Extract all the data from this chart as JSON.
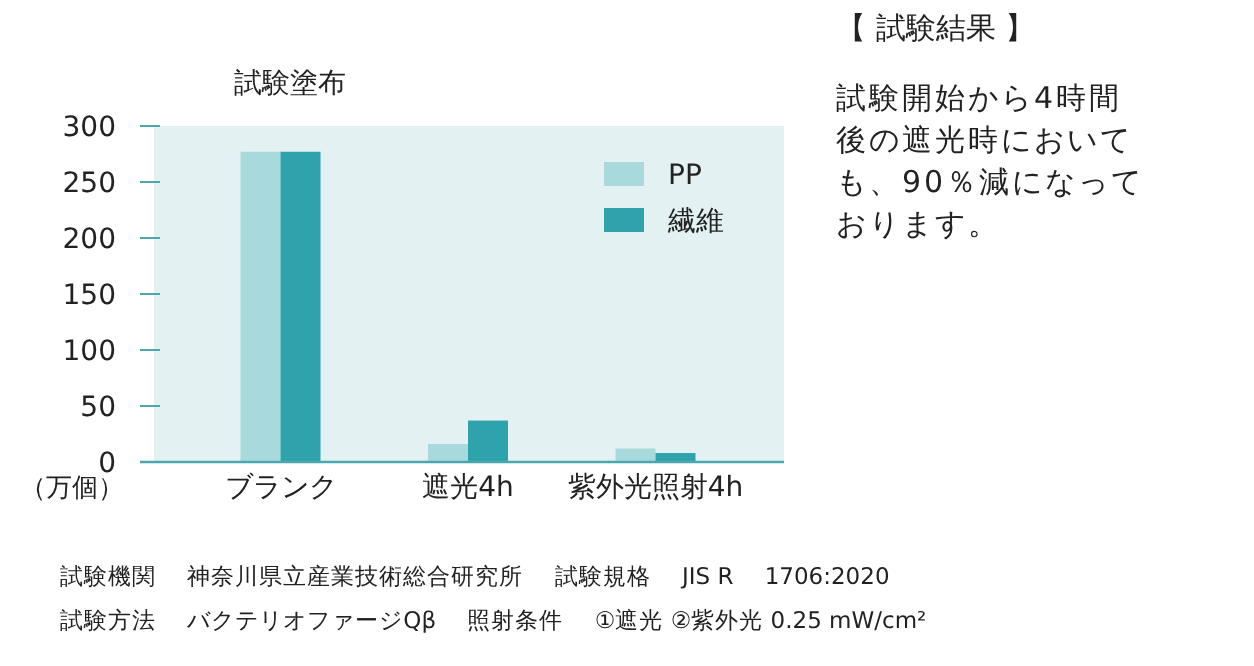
{
  "chart_data": {
    "type": "bar",
    "title": "試験塗布",
    "ylabel": "（万個）",
    "categories": [
      "ブランク",
      "遮光4h",
      "紫外光照射4h"
    ],
    "series": [
      {
        "name": "PP",
        "color": "#a8d9dc",
        "values": [
          277,
          16,
          12
        ]
      },
      {
        "name": "繊維",
        "color": "#2fa3ab",
        "values": [
          277,
          37,
          8
        ]
      }
    ],
    "ylim": [
      0,
      300
    ],
    "yticks": [
      0,
      50,
      100,
      150,
      200,
      250,
      300
    ],
    "grid": false,
    "legend": "top right",
    "annotations": [
      "【 試験結果 】",
      "試験開始から4時間",
      "後の遮光時において",
      "も、90％減になって",
      "おります。",
      "試験機関　 神奈川県立産業技術総合研究所　 試験規格　 JIS R　 1706:2020",
      "試験方法　 バクテリオファージQβ　 照射条件　 ①遮光 ②紫外光 0.25 mW/cm²"
    ]
  }
}
